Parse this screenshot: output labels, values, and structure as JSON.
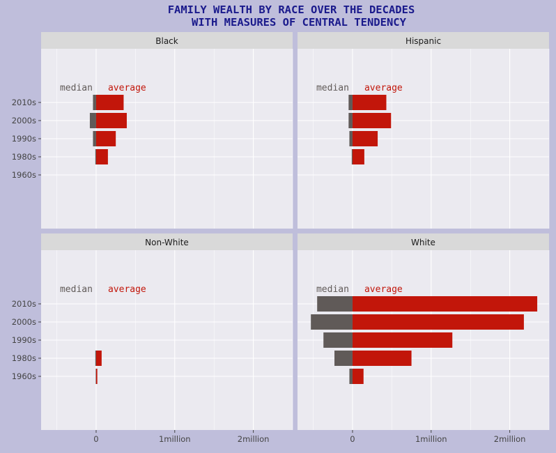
{
  "title_lines": [
    "FAMILY WEALTH BY RACE OVER THE DECADES",
    "WITH MEASURES OF CENTRAL TENDENCY"
  ],
  "colors": {
    "page_bg": "#bfbedb",
    "panel_bg": "#ebeaf0",
    "strip_bg": "#d9d9d9",
    "grid": "#ffffff",
    "median": "#605a58",
    "average": "#c2160a",
    "title": "#1a1a8c",
    "tick": "#444444"
  },
  "chart_data": {
    "type": "bar",
    "orientation": "horizontal",
    "categories": [
      "1960s",
      "1980s",
      "1990s",
      "2000s",
      "2010s"
    ],
    "legend_labels": {
      "median": "median",
      "average": "average"
    },
    "x_tick_labels": [
      "0",
      "1million",
      "2million"
    ],
    "x_ticks": [
      0,
      1000000,
      2000000
    ],
    "xlim": [
      -700000,
      2500000
    ],
    "note": "",
    "panels": [
      {
        "name": "Black",
        "series": [
          {
            "name": "median",
            "values": [
              null,
              10000,
              40000,
              80000,
              40000
            ]
          },
          {
            "name": "average",
            "values": [
              null,
              150000,
              250000,
              390000,
              350000
            ]
          }
        ]
      },
      {
        "name": "Hispanic",
        "series": [
          {
            "name": "median",
            "values": [
              null,
              10000,
              40000,
              50000,
              50000
            ]
          },
          {
            "name": "average",
            "values": [
              null,
              150000,
              320000,
              490000,
              430000
            ]
          }
        ]
      },
      {
        "name": "Non-White",
        "series": [
          {
            "name": "median",
            "values": [
              5000,
              10000,
              null,
              null,
              null
            ]
          },
          {
            "name": "average",
            "values": [
              15000,
              70000,
              null,
              null,
              null
            ]
          }
        ]
      },
      {
        "name": "White",
        "series": [
          {
            "name": "median",
            "values": [
              40000,
              230000,
              370000,
              530000,
              450000
            ]
          },
          {
            "name": "average",
            "values": [
              140000,
              750000,
              1270000,
              2180000,
              2350000
            ]
          }
        ]
      }
    ]
  }
}
